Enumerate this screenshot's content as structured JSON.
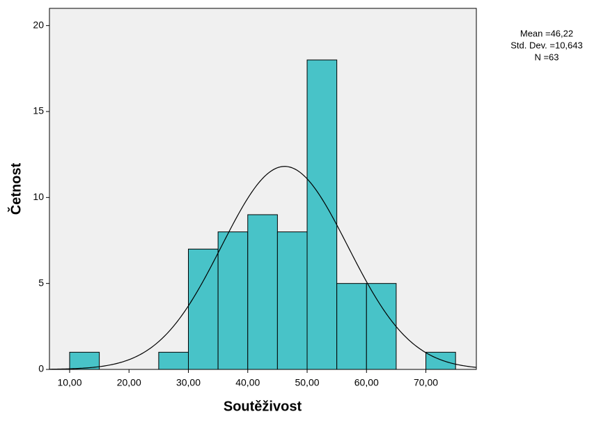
{
  "chart_data": {
    "type": "histogram",
    "x_label": "Soutěživost",
    "y_label": "Četnost",
    "bins": [
      10,
      15,
      20,
      25,
      30,
      35,
      40,
      45,
      50,
      55,
      60,
      65,
      70,
      75
    ],
    "values": [
      1,
      0,
      0,
      1,
      7,
      8,
      9,
      8,
      18,
      5,
      5,
      0,
      1
    ],
    "color": "#48c3c8",
    "xlim": [
      6.6,
      78.5
    ],
    "xticks": [
      {
        "value": 10,
        "label": "10,00"
      },
      {
        "value": 20,
        "label": "20,00"
      },
      {
        "value": 30,
        "label": "30,00"
      },
      {
        "value": 40,
        "label": "40,00"
      },
      {
        "value": 50,
        "label": "50,00"
      },
      {
        "value": 60,
        "label": "60,00"
      },
      {
        "value": 70,
        "label": "70,00"
      }
    ],
    "ylim": [
      0,
      21
    ],
    "yticks": [
      0,
      5,
      10,
      15,
      20
    ],
    "normal_curve": {
      "mean": 46.22,
      "sd": 10.643,
      "n": 63
    },
    "annotations": [
      "Mean =46,22",
      "Std. Dev. =10,643",
      "N =63"
    ]
  }
}
